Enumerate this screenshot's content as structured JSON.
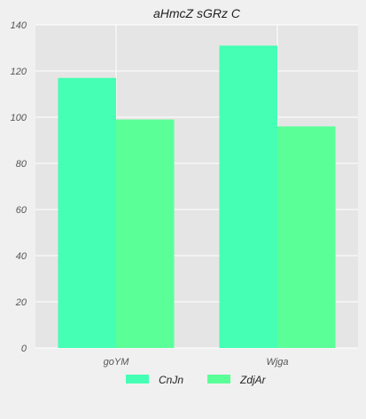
{
  "chart_data": {
    "type": "bar",
    "title": "aHmcZ  sGRz C",
    "xlabel": "",
    "ylabel": "",
    "categories": [
      "goYM",
      "Wjga"
    ],
    "series": [
      {
        "name": "CnJn",
        "values": [
          117,
          131
        ],
        "color": "#44ffb4"
      },
      {
        "name": "ZdjAr",
        "values": [
          99,
          96
        ],
        "color": "#5bff98"
      }
    ],
    "ylim": [
      0,
      140
    ],
    "yticks": [
      0,
      20,
      40,
      60,
      80,
      100,
      120,
      140
    ],
    "grid": true,
    "legend_position": "bottom-center",
    "colors": {
      "plot_background": "#e5e5e5",
      "page_background": "#f0f0f0",
      "grid": "#ffffff"
    }
  }
}
